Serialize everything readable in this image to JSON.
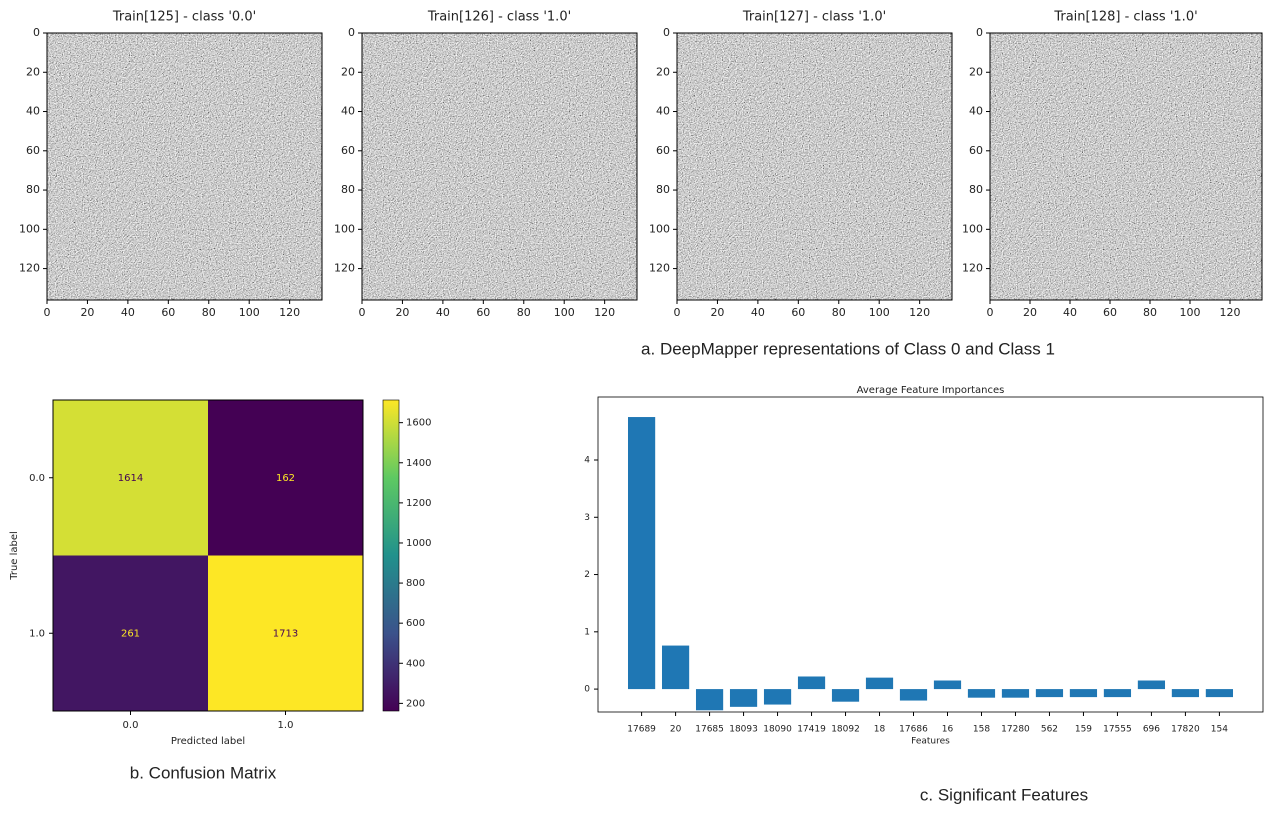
{
  "captions": {
    "a": "a. DeepMapper representations of Class 0 and Class 1",
    "b": "b. Confusion Matrix",
    "c": "c. Significant Features"
  },
  "chart_data": [
    {
      "type": "image",
      "title": "Train[125] - class '0.0'",
      "xlim": [
        0,
        136
      ],
      "ylim": [
        136,
        0
      ],
      "xticks": [
        0,
        20,
        40,
        60,
        80,
        100,
        120
      ],
      "yticks": [
        0,
        20,
        40,
        60,
        80,
        100,
        120
      ]
    },
    {
      "type": "image",
      "title": "Train[126] - class '1.0'",
      "xlim": [
        0,
        136
      ],
      "ylim": [
        136,
        0
      ],
      "xticks": [
        0,
        20,
        40,
        60,
        80,
        100,
        120
      ],
      "yticks": [
        0,
        20,
        40,
        60,
        80,
        100,
        120
      ]
    },
    {
      "type": "image",
      "title": "Train[127] - class '1.0'",
      "xlim": [
        0,
        136
      ],
      "ylim": [
        136,
        0
      ],
      "xticks": [
        0,
        20,
        40,
        60,
        80,
        100,
        120
      ],
      "yticks": [
        0,
        20,
        40,
        60,
        80,
        100,
        120
      ]
    },
    {
      "type": "image",
      "title": "Train[128] - class '1.0'",
      "xlim": [
        0,
        136
      ],
      "ylim": [
        136,
        0
      ],
      "xticks": [
        0,
        20,
        40,
        60,
        80,
        100,
        120
      ],
      "yticks": [
        0,
        20,
        40,
        60,
        80,
        100,
        120
      ]
    },
    {
      "type": "heatmap",
      "x_categories": [
        "0.0",
        "1.0"
      ],
      "y_categories": [
        "0.0",
        "1.0"
      ],
      "values": [
        [
          1614,
          162
        ],
        [
          261,
          1713
        ]
      ],
      "xlabel": "Predicted label",
      "ylabel": "True label",
      "colormap": "viridis",
      "clim": [
        162,
        1713
      ],
      "cticks": [
        200,
        400,
        600,
        800,
        1000,
        1200,
        1400,
        1600
      ]
    },
    {
      "type": "bar",
      "title": "Average Feature Importances",
      "xlabel": "Features",
      "color": "#1f77b4",
      "categories": [
        "17689",
        "20",
        "17685",
        "18093",
        "18090",
        "17419",
        "18092",
        "18",
        "17686",
        "16",
        "158",
        "17280",
        "562",
        "159",
        "17555",
        "696",
        "17820",
        "154"
      ],
      "values": [
        4.75,
        0.76,
        -0.37,
        -0.31,
        -0.27,
        0.22,
        -0.22,
        0.2,
        -0.2,
        0.15,
        -0.15,
        -0.15,
        -0.14,
        -0.14,
        -0.14,
        0.15,
        -0.14,
        -0.14
      ],
      "ylim": [
        -0.4,
        5.1
      ],
      "yticks": [
        0,
        1,
        2,
        3,
        4
      ]
    }
  ]
}
